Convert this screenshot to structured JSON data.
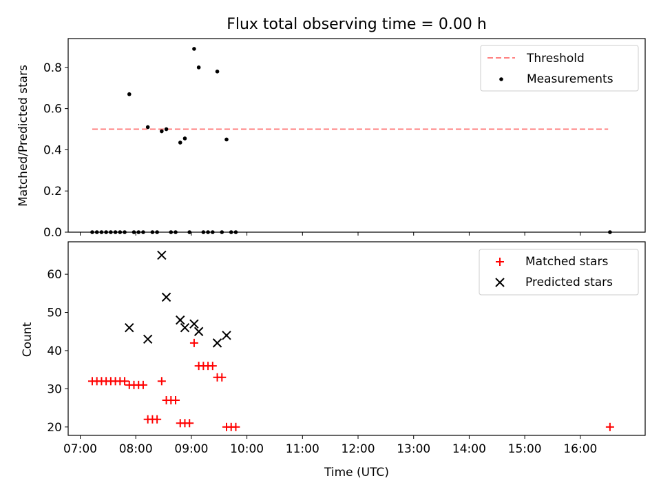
{
  "chart_data": [
    {
      "type": "scatter",
      "title": "Flux total observing time = 0.00 h",
      "xlabel": "",
      "ylabel": "Matched/Predicted stars",
      "ylim": [
        0,
        0.94
      ],
      "yticks": [
        "0.0",
        "0.2",
        "0.4",
        "0.6",
        "0.8"
      ],
      "grid": false,
      "legend_position": "upper right",
      "series": [
        {
          "name": "Threshold",
          "style": "dashed-line",
          "color": "#ff7f7f",
          "x": [
            "07:13",
            "16:30"
          ],
          "y": [
            0.5,
            0.5
          ]
        },
        {
          "name": "Measurements",
          "style": "dot",
          "color": "#000000",
          "x": [
            "07:13",
            "07:18",
            "07:23",
            "07:28",
            "07:33",
            "07:38",
            "07:43",
            "07:48",
            "07:53",
            "07:58",
            "08:03",
            "08:08",
            "08:13",
            "08:18",
            "08:23",
            "08:28",
            "08:33",
            "08:38",
            "08:43",
            "08:48",
            "08:53",
            "08:58",
            "09:03",
            "09:08",
            "09:13",
            "09:18",
            "09:23",
            "09:28",
            "09:33",
            "09:38",
            "09:43",
            "09:48",
            "16:32"
          ],
          "y": [
            0,
            0,
            0,
            0,
            0,
            0,
            0,
            0,
            0.67,
            0,
            0,
            0,
            0.51,
            0,
            0,
            0.49,
            0.5,
            0,
            0,
            0.435,
            0.455,
            0,
            0.89,
            0.8,
            0,
            0,
            0,
            0.78,
            0,
            0.45,
            0,
            0,
            0
          ]
        }
      ]
    },
    {
      "type": "scatter",
      "title": "",
      "xlabel": "Time (UTC)",
      "ylabel": "Count",
      "ylim": [
        17.8,
        68.5
      ],
      "yticks": [
        "20",
        "30",
        "40",
        "50",
        "60"
      ],
      "xlim": [
        "06:47",
        "17:10"
      ],
      "xticks": [
        "07:00",
        "08:00",
        "09:00",
        "10:00",
        "11:00",
        "12:00",
        "13:00",
        "14:00",
        "15:00",
        "16:00"
      ],
      "grid": false,
      "legend_position": "upper right",
      "series": [
        {
          "name": "Matched stars",
          "marker": "plus",
          "color": "#ff0000",
          "x": [
            "07:13",
            "07:18",
            "07:23",
            "07:28",
            "07:33",
            "07:38",
            "07:43",
            "07:48",
            "07:53",
            "07:58",
            "08:03",
            "08:08",
            "08:13",
            "08:18",
            "08:23",
            "08:28",
            "08:33",
            "08:38",
            "08:43",
            "08:48",
            "08:53",
            "08:58",
            "09:03",
            "09:08",
            "09:13",
            "09:18",
            "09:23",
            "09:28",
            "09:33",
            "09:38",
            "09:43",
            "09:48",
            "16:32"
          ],
          "y": [
            32,
            32,
            32,
            32,
            32,
            32,
            32,
            32,
            31,
            31,
            31,
            31,
            22,
            22,
            22,
            32,
            27,
            27,
            27,
            21,
            21,
            21,
            42,
            36,
            36,
            36,
            36,
            33,
            33,
            20,
            20,
            20,
            20
          ]
        },
        {
          "name": "Predicted stars",
          "marker": "x",
          "color": "#000000",
          "x": [
            "07:53",
            "08:13",
            "08:28",
            "08:33",
            "08:48",
            "08:53",
            "09:03",
            "09:08",
            "09:28",
            "09:38"
          ],
          "y": [
            46,
            43,
            65,
            54,
            48,
            46,
            47,
            45,
            42,
            44
          ]
        }
      ]
    }
  ]
}
